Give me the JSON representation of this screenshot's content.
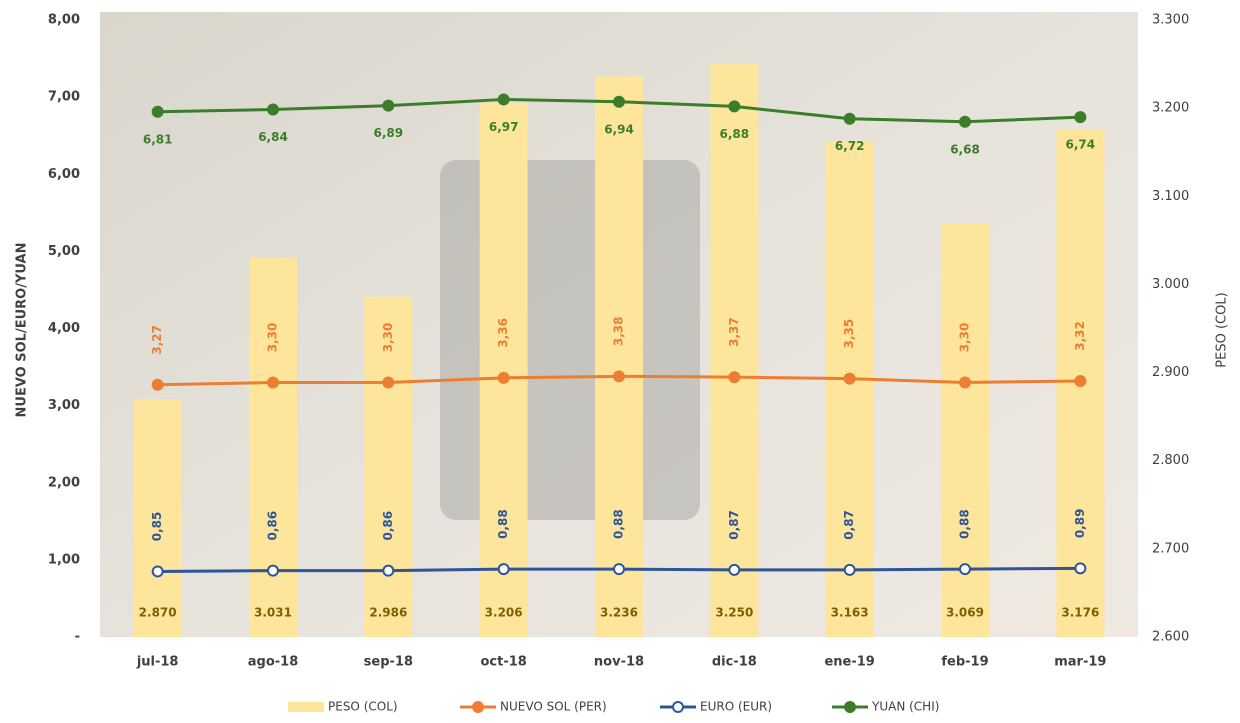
{
  "chart_data": {
    "type": "combo",
    "categories": [
      "jul-18",
      "ago-18",
      "sep-18",
      "oct-18",
      "nov-18",
      "dic-18",
      "ene-19",
      "feb-19",
      "mar-19"
    ],
    "y_label": "NUEVO SOL/EURO/YUAN",
    "y2_label": "PESO (COL)",
    "ylim": [
      0,
      8
    ],
    "yticks": [
      {
        "value": 0,
        "label": "-"
      },
      {
        "value": 1,
        "label": "1,00"
      },
      {
        "value": 2,
        "label": "2,00"
      },
      {
        "value": 3,
        "label": "3,00"
      },
      {
        "value": 4,
        "label": "4,00"
      },
      {
        "value": 5,
        "label": "5,00"
      },
      {
        "value": 6,
        "label": "6,00"
      },
      {
        "value": 7,
        "label": "7,00"
      },
      {
        "value": 8,
        "label": "8,00"
      }
    ],
    "y2lim": [
      2600,
      3300
    ],
    "y2ticks": [
      {
        "value": 2600,
        "label": "2.600"
      },
      {
        "value": 2700,
        "label": "2.700"
      },
      {
        "value": 2800,
        "label": "2.800"
      },
      {
        "value": 2900,
        "label": "2.900"
      },
      {
        "value": 3000,
        "label": "3.000"
      },
      {
        "value": 3100,
        "label": "3.100"
      },
      {
        "value": 3200,
        "label": "3.200"
      },
      {
        "value": 3300,
        "label": "3.300"
      }
    ],
    "series": [
      {
        "name": "PESO (COL)",
        "type": "bar",
        "axis": "y2",
        "color": "#fde59c",
        "values": [
          2870,
          3031,
          2986,
          3206,
          3236,
          3250,
          3163,
          3069,
          3176
        ],
        "value_labels": [
          "2.870",
          "3.031",
          "2.986",
          "3.206",
          "3.236",
          "3.250",
          "3.163",
          "3.069",
          "3.176"
        ]
      },
      {
        "name": "NUEVO SOL (PER)",
        "type": "line",
        "color": "#ed7d31",
        "values": [
          3.27,
          3.3,
          3.3,
          3.36,
          3.38,
          3.37,
          3.35,
          3.3,
          3.32
        ],
        "value_labels": [
          "3,27",
          "3,30",
          "3,30",
          "3,36",
          "3,38",
          "3,37",
          "3,35",
          "3,30",
          "3,32"
        ]
      },
      {
        "name": "EURO (EUR)",
        "type": "line",
        "color": "#2f5597",
        "values": [
          0.85,
          0.86,
          0.86,
          0.88,
          0.88,
          0.87,
          0.87,
          0.88,
          0.89
        ],
        "value_labels": [
          "0,85",
          "0,86",
          "0,86",
          "0,88",
          "0,88",
          "0,87",
          "0,87",
          "0,88",
          "0,89"
        ]
      },
      {
        "name": "YUAN (CHI)",
        "type": "line",
        "color": "#3b7d2a",
        "values": [
          6.81,
          6.84,
          6.89,
          6.97,
          6.94,
          6.88,
          6.72,
          6.68,
          6.74
        ],
        "value_labels": [
          "6,81",
          "6,84",
          "6,89",
          "6,97",
          "6,94",
          "6,88",
          "6,72",
          "6,68",
          "6,74"
        ]
      }
    ]
  }
}
